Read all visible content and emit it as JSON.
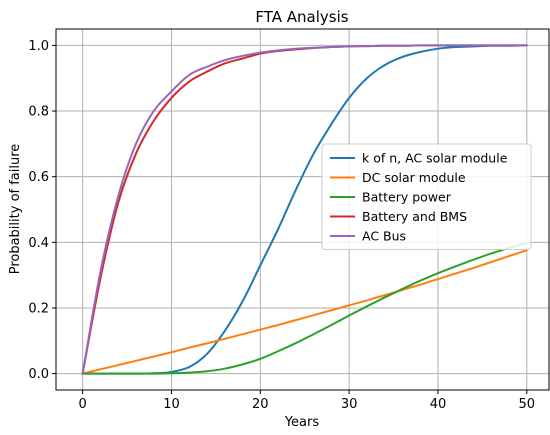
{
  "chart_data": {
    "type": "line",
    "title": "FTA Analysis",
    "xlabel": "Years",
    "ylabel": "Probability of failure",
    "xlim": [
      -3,
      52.5
    ],
    "ylim": [
      -0.05,
      1.05
    ],
    "xticks": [
      0,
      10,
      20,
      30,
      40,
      50
    ],
    "xtick_labels": [
      "0",
      "10",
      "20",
      "30",
      "40",
      "50"
    ],
    "yticks": [
      0.0,
      0.2,
      0.4,
      0.6,
      0.8,
      1.0
    ],
    "ytick_labels": [
      "0.0",
      "0.2",
      "0.4",
      "0.6",
      "0.8",
      "1.0"
    ],
    "grid": true,
    "legend_position": "center-right",
    "x": [
      0,
      2,
      4,
      6,
      8,
      10,
      12,
      14,
      16,
      18,
      20,
      22,
      24,
      26,
      28,
      30,
      32,
      34,
      36,
      38,
      40,
      42,
      44,
      46,
      48,
      50
    ],
    "series": [
      {
        "name": "k of n, AC solar module",
        "color": "#1f77b4",
        "values": [
          0,
          0,
          0,
          0,
          0.001,
          0.005,
          0.02,
          0.06,
          0.13,
          0.22,
          0.33,
          0.44,
          0.56,
          0.67,
          0.76,
          0.84,
          0.9,
          0.94,
          0.965,
          0.98,
          0.99,
          0.995,
          0.997,
          0.999,
          0.999,
          1.0
        ]
      },
      {
        "name": "DC solar module",
        "color": "#ff7f0e",
        "values": [
          0,
          0.013,
          0.026,
          0.039,
          0.052,
          0.065,
          0.079,
          0.092,
          0.106,
          0.12,
          0.134,
          0.148,
          0.163,
          0.178,
          0.193,
          0.208,
          0.223,
          0.239,
          0.255,
          0.271,
          0.288,
          0.305,
          0.322,
          0.34,
          0.358,
          0.376
        ]
      },
      {
        "name": "Battery power",
        "color": "#2ca02c",
        "values": [
          0,
          0,
          0,
          0,
          0,
          0.001,
          0.003,
          0.007,
          0.015,
          0.028,
          0.045,
          0.068,
          0.093,
          0.12,
          0.148,
          0.177,
          0.205,
          0.232,
          0.258,
          0.283,
          0.306,
          0.327,
          0.347,
          0.366,
          0.383,
          0.398
        ]
      },
      {
        "name": "Battery and BMS",
        "color": "#d62728",
        "values": [
          0,
          0.29,
          0.52,
          0.67,
          0.77,
          0.84,
          0.89,
          0.92,
          0.945,
          0.96,
          0.975,
          0.983,
          0.988,
          0.992,
          0.995,
          0.997,
          0.998,
          0.999,
          0.999,
          1.0,
          1.0,
          1.0,
          1.0,
          1.0,
          1.0,
          1.0
        ]
      },
      {
        "name": "AC Bus",
        "color": "#9467bd",
        "values": [
          0,
          0.31,
          0.54,
          0.7,
          0.8,
          0.86,
          0.91,
          0.935,
          0.955,
          0.968,
          0.978,
          0.985,
          0.99,
          0.993,
          0.995,
          0.997,
          0.998,
          0.999,
          0.999,
          1.0,
          1.0,
          1.0,
          1.0,
          1.0,
          1.0,
          1.0
        ]
      }
    ]
  }
}
